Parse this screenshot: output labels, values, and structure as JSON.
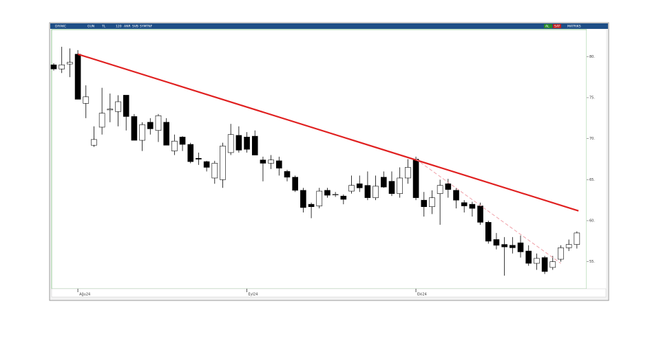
{
  "toolbar": {
    "items": [
      "DIYAKC",
      "GUN",
      "TL",
      "120",
      "ANR",
      "SVB",
      "SYMTNF"
    ],
    "buttons": [
      "AL",
      "SAT",
      "MATRIKS"
    ]
  },
  "chart_data": {
    "type": "candlestick",
    "categories": [
      null,
      null,
      null,
      "Ağu24",
      null,
      null,
      null,
      null,
      null,
      null,
      null,
      null,
      null,
      null,
      null,
      null,
      null,
      null,
      null,
      null,
      null,
      null,
      null,
      null,
      "Eyl24",
      null,
      null,
      null,
      null,
      null,
      null,
      null,
      null,
      null,
      null,
      null,
      null,
      null,
      null,
      null,
      null,
      null,
      null,
      null,
      null,
      "Eki24",
      null,
      null,
      null,
      null,
      null,
      null,
      null,
      null,
      null,
      null,
      null,
      null,
      null,
      null,
      null,
      null,
      null,
      null,
      null,
      null
    ],
    "open": [
      79.0,
      78.5,
      79.1,
      80.3,
      74.3,
      69.2,
      71.4,
      73.5,
      73.3,
      75.3,
      72.7,
      69.8,
      72.0,
      71.0,
      72.0,
      68.5,
      70.2,
      69.3,
      67.6,
      67.2,
      65.2,
      65.0,
      68.3,
      70.4,
      70.2,
      70.3,
      67.4,
      67.0,
      67.3,
      66.0,
      65.3,
      63.7,
      62.0,
      61.8,
      63.7,
      63.2,
      63.0,
      63.6,
      64.5,
      64.3,
      62.8,
      65.3,
      64.8,
      63.3,
      65.2,
      67.5,
      62.5,
      61.7,
      63.3,
      64.5,
      63.7,
      62.2,
      62.0,
      61.8,
      59.8,
      57.7,
      57.1,
      57.0,
      57.3,
      56.3,
      54.8,
      55.5,
      54.3,
      55.3,
      56.7,
      57.1
    ],
    "high": [
      79.2,
      81.2,
      81.0,
      80.8,
      76.5,
      71.5,
      76.2,
      75.5,
      75.3,
      75.3,
      73.0,
      72.0,
      72.5,
      73.0,
      72.5,
      70.5,
      70.3,
      69.5,
      68.3,
      67.3,
      67.3,
      69.5,
      71.8,
      71.5,
      70.8,
      71.0,
      67.8,
      68.0,
      67.8,
      66.2,
      65.5,
      64.0,
      62.2,
      64.0,
      64.0,
      63.5,
      63.2,
      65.5,
      65.5,
      66.0,
      65.5,
      66.0,
      66.0,
      66.5,
      67.5,
      67.8,
      63.5,
      63.7,
      65.0,
      65.1,
      64.0,
      62.5,
      62.3,
      62.2,
      60.0,
      58.5,
      58.0,
      58.0,
      58.2,
      57.0,
      56.0,
      55.7,
      55.7,
      57.0,
      57.7,
      58.7
    ],
    "low": [
      78.3,
      78.0,
      77.5,
      74.8,
      72.5,
      69.0,
      70.5,
      72.0,
      71.5,
      71.0,
      69.8,
      68.5,
      70.5,
      69.6,
      69.2,
      68.0,
      68.5,
      67.0,
      66.8,
      66.0,
      64.5,
      64.0,
      68.0,
      68.3,
      68.3,
      68.0,
      64.8,
      66.3,
      65.5,
      64.8,
      63.5,
      61.0,
      60.3,
      61.5,
      62.8,
      62.9,
      62.0,
      63.3,
      63.5,
      62.5,
      62.5,
      64.0,
      63.0,
      62.8,
      64.5,
      62.5,
      60.5,
      60.8,
      59.5,
      62.8,
      61.5,
      61.0,
      60.5,
      59.5,
      57.2,
      56.5,
      53.3,
      56.0,
      55.5,
      54.5,
      54.0,
      53.5,
      54.0,
      55.0,
      56.3,
      56.6
    ],
    "close": [
      78.5,
      79.0,
      79.3,
      74.8,
      75.1,
      69.9,
      73.1,
      73.6,
      74.5,
      72.7,
      69.8,
      71.7,
      71.2,
      72.8,
      69.2,
      69.7,
      69.3,
      67.2,
      67.5,
      66.5,
      67.0,
      69.1,
      70.5,
      68.6,
      68.7,
      68.0,
      67.0,
      67.4,
      66.4,
      65.3,
      63.7,
      61.6,
      61.7,
      63.6,
      63.1,
      63.2,
      62.6,
      64.3,
      64.0,
      62.8,
      64.2,
      64.1,
      63.3,
      65.2,
      66.5,
      62.8,
      61.7,
      62.8,
      64.3,
      63.8,
      62.5,
      61.8,
      61.5,
      59.8,
      57.5,
      57.0,
      56.8,
      56.7,
      56.2,
      54.8,
      55.4,
      53.8,
      55.0,
      56.7,
      57.1,
      58.5
    ],
    "up_color": "#ffffff",
    "down_color": "#000000",
    "trendlines": [
      {
        "x": [
          3,
          65.2
        ],
        "y": [
          80.3,
          61.2
        ],
        "color": "#e02020",
        "dashed": false
      },
      {
        "x": [
          45,
          63
        ],
        "y": [
          67.5,
          54.8
        ],
        "color": "#f0a0a8",
        "dashed": true
      }
    ],
    "ylim": [
      51.7,
      83.3
    ],
    "yticks": [
      {
        "value": 55,
        "label": "55."
      },
      {
        "value": 60,
        "label": "60."
      },
      {
        "value": 65,
        "label": "65."
      },
      {
        "value": 70,
        "label": "70."
      },
      {
        "value": 75,
        "label": "75."
      },
      {
        "value": 80,
        "label": "80."
      }
    ]
  }
}
